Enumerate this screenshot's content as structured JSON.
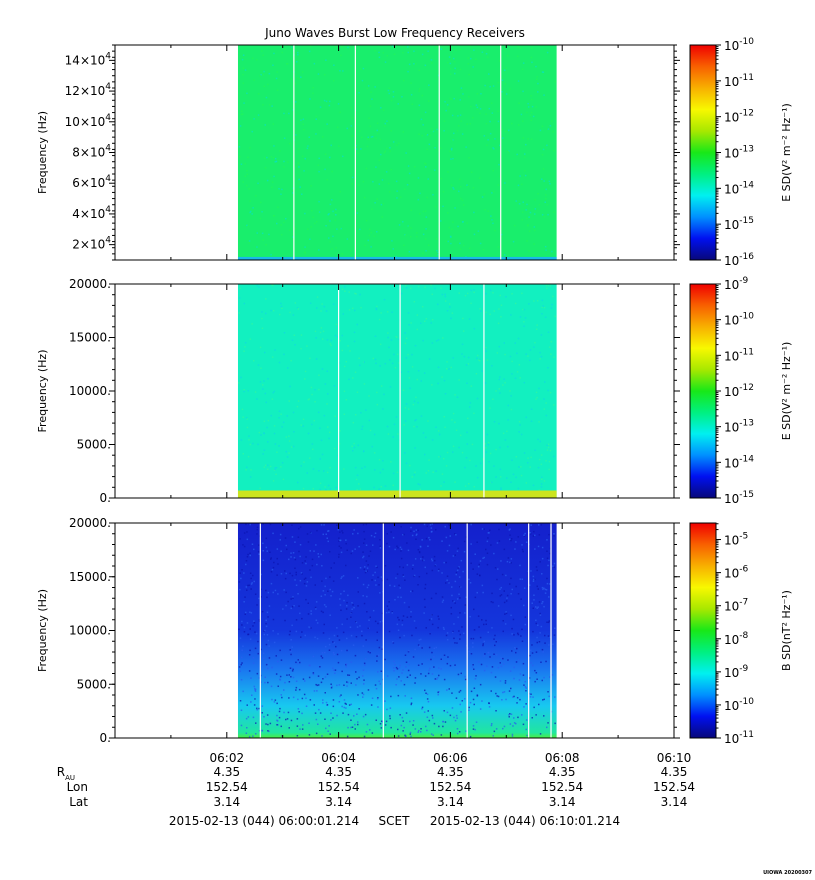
{
  "chart_data": {
    "type": "heatmap",
    "title": "Juno Waves Burst Low Frequency Receivers",
    "xlim": [
      "06:00:01.214",
      "06:10:01.214"
    ],
    "x_ticks": [
      "06:02",
      "06:04",
      "06:06",
      "06:08",
      "06:10"
    ],
    "x_tick_minutes": [
      2,
      4,
      6,
      8,
      10
    ],
    "data_span_minutes": [
      2.2,
      7.9
    ],
    "ephemeris": {
      "labels": {
        "r": "R",
        "r_sub": "AU",
        "lon": "Lon",
        "lat": "Lat"
      },
      "columns": [
        {
          "r": "4.35",
          "lon": "152.54",
          "lat": "3.14"
        },
        {
          "r": "4.35",
          "lon": "152.54",
          "lat": "3.14"
        },
        {
          "r": "4.35",
          "lon": "152.54",
          "lat": "3.14"
        },
        {
          "r": "4.35",
          "lon": "152.54",
          "lat": "3.14"
        },
        {
          "r": "4.35",
          "lon": "152.54",
          "lat": "3.14"
        }
      ]
    },
    "time_range": {
      "start": "2015-02-13 (044) 06:00:01.214",
      "frame": "SCET",
      "end": "2015-02-13 (044) 06:10:01.214"
    },
    "footer_tag": "UIOWA 20200307",
    "panels": [
      {
        "ylabel": "Frequency (Hz)",
        "ylim": [
          10000,
          150000
        ],
        "yticks": [
          {
            "base": "2×10",
            "exp": "4",
            "value": 20000
          },
          {
            "base": "4×10",
            "exp": "4",
            "value": 40000
          },
          {
            "base": "6×10",
            "exp": "4",
            "value": 60000
          },
          {
            "base": "8×10",
            "exp": "4",
            "value": 80000
          },
          {
            "base": "10×10",
            "exp": "4",
            "value": 100000
          },
          {
            "base": "12×10",
            "exp": "4",
            "value": 120000
          },
          {
            "base": "14×10",
            "exp": "4",
            "value": 140000
          }
        ],
        "colorbar_label": "E SD(V² m⁻² Hz⁻¹)",
        "colorbar_exponents": [
          "-10",
          "-11",
          "-12",
          "-13",
          "-14",
          "-15",
          "-16"
        ],
        "colorbar_range": [
          -16,
          -10
        ],
        "gap_minutes": [
          3.2,
          4.3,
          5.8,
          6.9
        ],
        "fill_color": "#19ee6c",
        "noise_colors": [
          "#08e2c0",
          "#22f55a"
        ],
        "low_band": {
          "max_hz": 12000,
          "color": "#1ab8e8"
        }
      },
      {
        "ylabel": "Frequency (Hz)",
        "ylim": [
          0,
          20000
        ],
        "yticks": [
          {
            "label": "0.",
            "value": 0
          },
          {
            "label": "5000.",
            "value": 5000
          },
          {
            "label": "10000.",
            "value": 10000
          },
          {
            "label": "15000.",
            "value": 15000
          },
          {
            "label": "20000.",
            "value": 20000
          }
        ],
        "colorbar_label": "E SD(V² m⁻² Hz⁻¹)",
        "colorbar_exponents": [
          "-9",
          "-10",
          "-11",
          "-12",
          "-13",
          "-14",
          "-15"
        ],
        "colorbar_range": [
          -15,
          -9
        ],
        "gap_minutes": [
          4.0,
          5.1,
          6.6
        ],
        "fill_color": "#12f0c0",
        "noise_colors": [
          "#10d8e0",
          "#30f6a0"
        ],
        "low_band": {
          "max_hz": 700,
          "color": "#cce41e"
        }
      },
      {
        "ylabel": "Frequency (Hz)",
        "ylim": [
          0,
          20000
        ],
        "yticks": [
          {
            "label": "0.",
            "value": 0
          },
          {
            "label": "5000.",
            "value": 5000
          },
          {
            "label": "10000.",
            "value": 10000
          },
          {
            "label": "15000.",
            "value": 15000
          },
          {
            "label": "20000.",
            "value": 20000
          }
        ],
        "colorbar_label": "B SD(nT² Hz⁻¹)",
        "colorbar_exponents": [
          "-5",
          "-6",
          "-7",
          "-8",
          "-9",
          "-10",
          "-11"
        ],
        "colorbar_range": [
          -11,
          -4.5
        ],
        "gap_minutes": [
          2.6,
          4.8,
          6.3,
          7.4,
          7.8
        ],
        "fill_color": "#1424d8",
        "noise_colors": [
          "#0a14b0",
          "#2a5cf0"
        ],
        "gradient_stops": [
          {
            "hz": 0,
            "color": "#4cee40"
          },
          {
            "hz": 500,
            "color": "#20e6a0"
          },
          {
            "hz": 3000,
            "color": "#18c8f0"
          },
          {
            "hz": 6500,
            "color": "#1a74f0"
          },
          {
            "hz": 10000,
            "color": "#1436dc"
          },
          {
            "hz": 20000,
            "color": "#1420cc"
          }
        ]
      }
    ],
    "colormap": [
      "#08087a",
      "#0010f0",
      "#0090ff",
      "#00f0f0",
      "#00f080",
      "#18e818",
      "#a8e800",
      "#f8f800",
      "#f8b000",
      "#f86000",
      "#f00000"
    ]
  }
}
